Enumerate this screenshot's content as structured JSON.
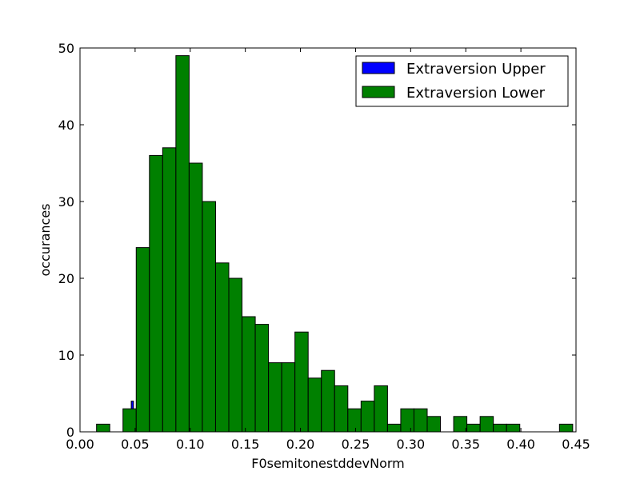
{
  "chart_data": {
    "type": "bar",
    "title": "",
    "xlabel": "F0semitonestddevNorm",
    "ylabel": "occurances",
    "xlim": [
      0.0,
      0.45
    ],
    "ylim": [
      0,
      50
    ],
    "xticks": [
      "0.00",
      "0.05",
      "0.10",
      "0.15",
      "0.20",
      "0.25",
      "0.30",
      "0.35",
      "0.40",
      "0.45"
    ],
    "yticks": [
      "0",
      "10",
      "20",
      "30",
      "40",
      "50"
    ],
    "legend_position": "top-right",
    "series": [
      {
        "name": "Extraversion Upper",
        "color": "#0000ff",
        "bins": [
          {
            "x0": 0.0465,
            "x1": 0.0485,
            "value": 4
          }
        ]
      },
      {
        "name": "Extraversion Lower",
        "color": "#008000",
        "bins": [
          {
            "x0": 0.015,
            "x1": 0.027,
            "value": 1
          },
          {
            "x0": 0.039,
            "x1": 0.051,
            "value": 3
          },
          {
            "x0": 0.051,
            "x1": 0.063,
            "value": 24
          },
          {
            "x0": 0.063,
            "x1": 0.075,
            "value": 36
          },
          {
            "x0": 0.075,
            "x1": 0.087,
            "value": 37
          },
          {
            "x0": 0.087,
            "x1": 0.099,
            "value": 49
          },
          {
            "x0": 0.099,
            "x1": 0.111,
            "value": 35
          },
          {
            "x0": 0.111,
            "x1": 0.123,
            "value": 30
          },
          {
            "x0": 0.123,
            "x1": 0.135,
            "value": 22
          },
          {
            "x0": 0.135,
            "x1": 0.147,
            "value": 20
          },
          {
            "x0": 0.147,
            "x1": 0.159,
            "value": 15
          },
          {
            "x0": 0.159,
            "x1": 0.171,
            "value": 14
          },
          {
            "x0": 0.171,
            "x1": 0.183,
            "value": 9
          },
          {
            "x0": 0.183,
            "x1": 0.195,
            "value": 9
          },
          {
            "x0": 0.195,
            "x1": 0.207,
            "value": 13
          },
          {
            "x0": 0.207,
            "x1": 0.219,
            "value": 7
          },
          {
            "x0": 0.219,
            "x1": 0.231,
            "value": 8
          },
          {
            "x0": 0.231,
            "x1": 0.243,
            "value": 6
          },
          {
            "x0": 0.243,
            "x1": 0.255,
            "value": 3
          },
          {
            "x0": 0.255,
            "x1": 0.267,
            "value": 4
          },
          {
            "x0": 0.267,
            "x1": 0.279,
            "value": 6
          },
          {
            "x0": 0.279,
            "x1": 0.291,
            "value": 1
          },
          {
            "x0": 0.291,
            "x1": 0.303,
            "value": 3
          },
          {
            "x0": 0.303,
            "x1": 0.315,
            "value": 3
          },
          {
            "x0": 0.315,
            "x1": 0.327,
            "value": 2
          },
          {
            "x0": 0.339,
            "x1": 0.351,
            "value": 2
          },
          {
            "x0": 0.351,
            "x1": 0.363,
            "value": 1
          },
          {
            "x0": 0.363,
            "x1": 0.375,
            "value": 2
          },
          {
            "x0": 0.375,
            "x1": 0.387,
            "value": 1
          },
          {
            "x0": 0.387,
            "x1": 0.399,
            "value": 1
          },
          {
            "x0": 0.435,
            "x1": 0.447,
            "value": 1
          }
        ]
      }
    ]
  }
}
